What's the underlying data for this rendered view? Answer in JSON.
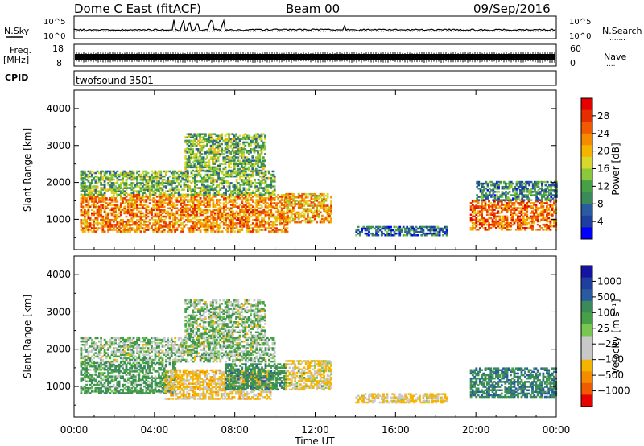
{
  "header": {
    "title": "Dome C East (fitACF)",
    "beam": "Beam 00",
    "date": "09/Sep/2016"
  },
  "top_panels": {
    "nsky_label": "N.Sky",
    "nsearch_label": "N.Search",
    "nsearch_dots": ".......",
    "freq_label": "Freq.",
    "freq_unit": "[MHz]",
    "nave_label": "Nave",
    "nave_dots": "....",
    "cpid_label": "CPID",
    "cpid_value": "twofsound 3501",
    "noise_left_ticks": [
      "10^5",
      "10^0"
    ],
    "noise_right_ticks": [
      "10^5",
      "10^0"
    ],
    "freq_ticks": [
      "18",
      "8"
    ],
    "nave_ticks": [
      "60",
      "0"
    ]
  },
  "colors": {
    "power": [
      "#0000ff",
      "#1f3fa0",
      "#2a5aa0",
      "#3a8a5a",
      "#46a046",
      "#8cc83c",
      "#d7d72d",
      "#f5b400",
      "#f58c00",
      "#f05a00",
      "#e62d00",
      "#e60000"
    ],
    "velocity": [
      "#e60000",
      "#f05a00",
      "#f58c00",
      "#f5b400",
      "#c8c8c8",
      "#c8c8c8",
      "#78c850",
      "#46a046",
      "#3a8a5a",
      "#2a5aa0",
      "#1f3fa0",
      "#1414a0"
    ]
  },
  "chart_data": [
    {
      "type": "heatmap",
      "name": "power",
      "ylabel": "Slant Range [km]",
      "xlabel": "Time UT",
      "xlim": [
        "00:00",
        "24:00"
      ],
      "ylim": [
        180,
        4500
      ],
      "yticks": [
        1000,
        2000,
        3000,
        4000
      ],
      "xticks": [
        "00:00",
        "04:00",
        "08:00",
        "12:00",
        "16:00",
        "20:00",
        "00:00"
      ],
      "colorbar": {
        "label": "Power [dB]",
        "ticks": [
          "4",
          "8",
          "12",
          "16",
          "20",
          "24",
          "28"
        ],
        "range": [
          0,
          30
        ]
      },
      "echo_regions": [
        {
          "t": [
            0.3,
            10.6
          ],
          "r": [
            650,
            1650
          ],
          "value": 22
        },
        {
          "t": [
            0.3,
            10.0
          ],
          "r": [
            1650,
            2300
          ],
          "value": 12
        },
        {
          "t": [
            5.5,
            9.5
          ],
          "r": [
            2300,
            3300
          ],
          "value": 12
        },
        {
          "t": [
            10.5,
            12.8
          ],
          "r": [
            900,
            1700
          ],
          "value": 20
        },
        {
          "t": [
            14.0,
            18.5
          ],
          "r": [
            550,
            800
          ],
          "value": 6
        },
        {
          "t": [
            19.7,
            24.0
          ],
          "r": [
            700,
            1500
          ],
          "value": 24
        },
        {
          "t": [
            20.0,
            24.0
          ],
          "r": [
            1500,
            2000
          ],
          "value": 8
        }
      ]
    },
    {
      "type": "heatmap",
      "name": "velocity",
      "ylabel": "Slant Range [km]",
      "xlabel": "Time UT",
      "xlim": [
        "00:00",
        "24:00"
      ],
      "ylim": [
        180,
        4500
      ],
      "yticks": [
        1000,
        2000,
        3000,
        4000
      ],
      "xticks": [
        "00:00",
        "04:00",
        "08:00",
        "12:00",
        "16:00",
        "20:00",
        "00:00"
      ],
      "colorbar": {
        "label": "Velocity [m s⁻¹]",
        "ticks": [
          "1000",
          "500",
          "100",
          "25",
          "−25",
          "−100",
          "−500",
          "−1000"
        ]
      },
      "echo_regions": [
        {
          "t": [
            0.3,
            5.0
          ],
          "r": [
            800,
            1650
          ],
          "value": 100
        },
        {
          "t": [
            4.5,
            9.8
          ],
          "r": [
            650,
            1450
          ],
          "value": -150
        },
        {
          "t": [
            7.5,
            10.5
          ],
          "r": [
            900,
            1600
          ],
          "value": 150
        },
        {
          "t": [
            0.3,
            10.0
          ],
          "r": [
            1650,
            2300
          ],
          "value": 10
        },
        {
          "t": [
            5.5,
            9.5
          ],
          "r": [
            2300,
            3300
          ],
          "value": 10
        },
        {
          "t": [
            10.5,
            12.8
          ],
          "r": [
            900,
            1700
          ],
          "value": -100
        },
        {
          "t": [
            14.0,
            18.5
          ],
          "r": [
            550,
            800
          ],
          "value": -120
        },
        {
          "t": [
            19.7,
            24.0
          ],
          "r": [
            700,
            1500
          ],
          "value": 200
        }
      ]
    }
  ]
}
